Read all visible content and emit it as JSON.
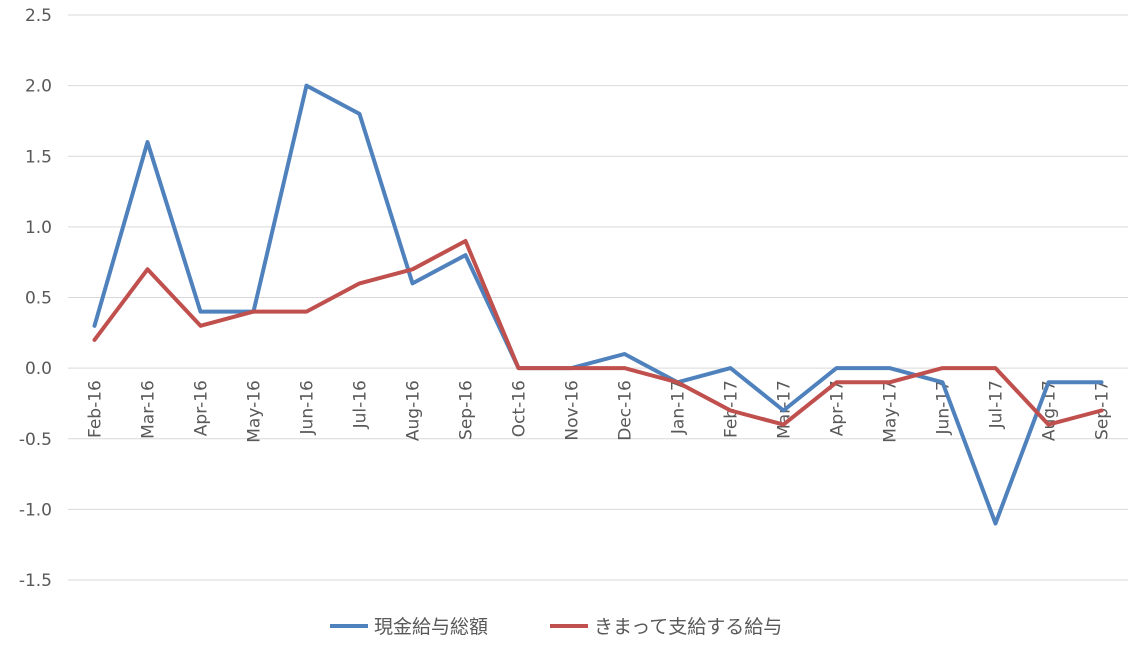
{
  "chart_data": {
    "type": "line",
    "title": "",
    "xlabel": "",
    "ylabel": "",
    "categories": [
      "Feb-16",
      "Mar-16",
      "Apr-16",
      "May-16",
      "Jun-16",
      "Jul-16",
      "Aug-16",
      "Sep-16",
      "Oct-16",
      "Nov-16",
      "Dec-16",
      "Jan-17",
      "Feb-17",
      "Mar-17",
      "Apr-17",
      "May-17",
      "Jun-17",
      "Jul-17",
      "Aug-17",
      "Sep-17"
    ],
    "ylim": [
      -1.5,
      2.5
    ],
    "yticks": [
      "-1.5",
      "-1.0",
      "-0.5",
      "0.0",
      "0.5",
      "1.0",
      "1.5",
      "2.0",
      "2.5"
    ],
    "grid": true,
    "legend_position": "bottom",
    "series": [
      {
        "name": "現金給与総額",
        "color": "#4f81bd",
        "values": [
          0.3,
          1.6,
          0.4,
          0.4,
          2.0,
          1.8,
          0.6,
          0.8,
          0.0,
          0.0,
          0.1,
          -0.1,
          0.0,
          -0.3,
          0.0,
          0.0,
          -0.1,
          -1.1,
          -0.1,
          -0.1
        ]
      },
      {
        "name": "きまって支給する給与",
        "color": "#c0504d",
        "values": [
          0.2,
          0.7,
          0.3,
          0.4,
          0.4,
          0.6,
          0.7,
          0.9,
          0.0,
          0.0,
          0.0,
          -0.1,
          -0.3,
          -0.4,
          -0.1,
          -0.1,
          0.0,
          0.0,
          -0.4,
          -0.3
        ]
      }
    ]
  }
}
